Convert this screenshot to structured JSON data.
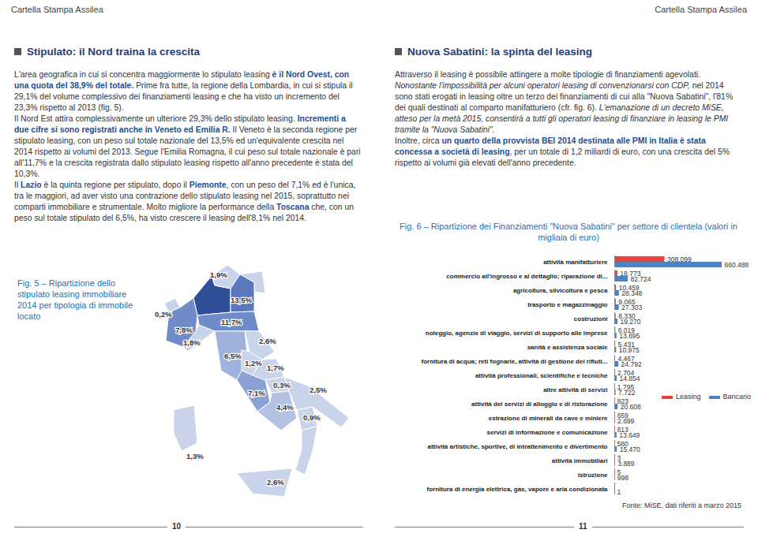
{
  "header": {
    "left": "Cartella Stampa Assilea",
    "right": "Cartella Stampa Assilea"
  },
  "left_column": {
    "heading": "Stipulato: il Nord traina la crescita",
    "paragraphs": [
      [
        {
          "text": "L'area geografica in cui si concentra maggiormente lo stipulato leasing ",
          "style": "plain"
        },
        {
          "text": "è il Nord Ovest, con una quota del 38,9% del totale.",
          "style": "bold"
        },
        {
          "text": " Prime fra tutte, la regione della Lombardia, in cui si stipula il 29,1% del volume complessivo dei finanziamenti leasing e che ha visto un incremento del 23,3% rispetto al 2013 (fig. 5).",
          "style": "plain"
        }
      ],
      [
        {
          "text": "Il Nord Est attira complessivamente un ulteriore 29,3% dello stipulato leasing. ",
          "style": "plain"
        },
        {
          "text": "Incrementi a due cifre si sono registrati anche in Veneto ed Emilia R.",
          "style": "bold"
        },
        {
          "text": " Il Veneto è la seconda regione per stipulato leasing, con un peso sul totale nazionale del 13,5% ed un'equivalente crescita nel 2014 rispetto ai volumi del 2013. Segue l'Emilia Romagna, il cui peso sul totale nazionale è pari all'11,7% e la crescita registrata dallo stipulato leasing rispetto all'anno precedente è stata del 10,3%.",
          "style": "plain"
        }
      ],
      [
        {
          "text": "Il ",
          "style": "plain"
        },
        {
          "text": "Lazio",
          "style": "bold"
        },
        {
          "text": " è la quinta regione per stipulato, dopo il ",
          "style": "plain"
        },
        {
          "text": "Piemonte",
          "style": "bold"
        },
        {
          "text": ", con un peso del 7,1% ed è l'unica, tra le maggiori, ad aver visto una contrazione dello stipulato leasing nel 2015, soprattutto nei comparti immobiliare e strumentale. Molto migliore la performance della ",
          "style": "plain"
        },
        {
          "text": "Toscana",
          "style": "bold"
        },
        {
          "text": " che, con un peso sul totale stipulato del 6,5%, ha visto crescere il leasing dell'8,1% nel 2014.",
          "style": "plain"
        }
      ]
    ]
  },
  "right_column": {
    "heading": "Nuova Sabatini: la spinta del leasing",
    "paragraphs": [
      [
        {
          "text": "Attraverso il leasing è possibile attingere a molte tipologie di finanziamenti agevolati. ",
          "style": "plain"
        },
        {
          "text": "Nonostante l'impossibilità per alcuni operatori leasing di convenzionarsi con CDP,",
          "style": "italic"
        },
        {
          "text": " nel 2014 sono stati erogati in leasing oltre un terzo dei finanziamenti di cui alla \"Nuova Sabatini\", l'81% dei quali destinati al comparto manifatturiero (cfr. fig. 6). ",
          "style": "plain"
        },
        {
          "text": "L'emanazione di un decreto MiSE, atteso per la metà 2015, consentirà a tutti gli operatori leasing di finanziare in leasing le PMI tramite la \"Nuova Sabatini\".",
          "style": "italic"
        }
      ],
      [
        {
          "text": "Inoltre, circa ",
          "style": "plain"
        },
        {
          "text": "un quarto della provvista BEI 2014 destinata alle PMI in Italia è stata concessa a società di leasing",
          "style": "bold"
        },
        {
          "text": ", per un totale di 1,2 miliardi di euro, con una crescita del 5% rispetto ai volumi già elevati dell'anno precedente.",
          "style": "plain"
        }
      ]
    ]
  },
  "map": {
    "caption": "Fig. 5 – Ripartizione dello stipulato leasing immobiliare 2014 per tipologia di immobile locato",
    "regions": [
      {
        "label": "0,2%",
        "color": "#c9d3ea"
      },
      {
        "label": "7,8%",
        "color": "#6f8cc9"
      },
      {
        "label": "1,9%",
        "color": "#c9d3ea"
      },
      {
        "label": "13,5%",
        "color": "#5a78bd"
      },
      {
        "label": "1,8%",
        "color": "#c9d3ea"
      },
      {
        "label": "11,7%",
        "color": "#6f8cc9"
      },
      {
        "label": "6,5%",
        "color": "#9fb2dc"
      },
      {
        "label": "2,6%",
        "color": "#c9d3ea"
      },
      {
        "label": "1,2%",
        "color": "#c9d3ea"
      },
      {
        "label": "7,1%",
        "color": "#8aa1d4"
      },
      {
        "label": "1,7%",
        "color": "#c9d3ea"
      },
      {
        "label": "0,3%",
        "color": "#c9d3ea"
      },
      {
        "label": "4,4%",
        "color": "#b3c2e3"
      },
      {
        "label": "2,5%",
        "color": "#c9d3ea"
      },
      {
        "label": "0,9%",
        "color": "#c9d3ea"
      },
      {
        "label": "2,6%",
        "color": "#c9d3ea"
      },
      {
        "label": "1,3%",
        "color": "#c9d3ea"
      }
    ]
  },
  "chart_data": {
    "type": "bar",
    "orientation": "horizontal",
    "title": "Fig. 6 – Ripartizione dei Finanziamenti \"Nuova Sabatini\" per settore di clientela (valori in migliaia di euro)",
    "categories": [
      "attività manifatturiere",
      "commercio all'ingrosso e al dettaglio; riparazione di...",
      "agricoltura, silvicoltura e pesca",
      "trasporto e magazzinaggio",
      "costruzioni",
      "noleggio, agenzie di viaggio, servizi di supporto alle imprese",
      "sanità e assistenza sociale",
      "fornitura di acqua; reti fognarie, attività di gestione dei rifiuti...",
      "attività professionali, scientifiche e tecniche",
      "altre attività di servizi",
      "attività dei servizi di alloggio e di ristorazione",
      "estrazione di minerali da cave e miniere",
      "servizi di informazione e comunicazione",
      "attività artistiche, sportive, di intrattenimento e divertimento",
      "attività immobiliari",
      "istruzione",
      "fornitura di energia elettrica, gas, vapore e aria condizionata"
    ],
    "series": [
      {
        "name": "Leasing",
        "color": "#e8423b",
        "values": [
          308099,
          18773,
          10459,
          9065,
          8330,
          6019,
          5431,
          4467,
          2704,
          1795,
          823,
          659,
          613,
          580,
          3,
          5,
          null
        ],
        "value_labels": [
          "308.099",
          "18.773",
          "10.459",
          "9.065",
          "8.330",
          "6.019",
          "5.431",
          "4.467",
          "2.704",
          "1.795",
          "823",
          "659",
          "613",
          "580",
          "3",
          "5",
          null
        ]
      },
      {
        "name": "Bancario",
        "color": "#4f81bd",
        "values": [
          660488,
          82724,
          28348,
          27303,
          19270,
          13695,
          10975,
          24792,
          14854,
          7722,
          20608,
          2699,
          13649,
          15470,
          3889,
          998,
          1
        ],
        "value_labels": [
          "660.488",
          "82.724",
          "28.348",
          "27.303",
          "19.270",
          "13.695",
          "10.975",
          "24.792",
          "14.854",
          "7.722",
          "20.608",
          "2.699",
          "13.649",
          "15.470",
          "3.889",
          "998",
          "1"
        ]
      }
    ],
    "xlim": [
      0,
      660488
    ],
    "xticks": [],
    "tick_labels": "y",
    "data_labels": true,
    "legend": "right",
    "grid": false
  },
  "source": "Fonte: MiSE, dati riferiti a marzo 2015",
  "page_numbers": [
    "10",
    "11"
  ]
}
